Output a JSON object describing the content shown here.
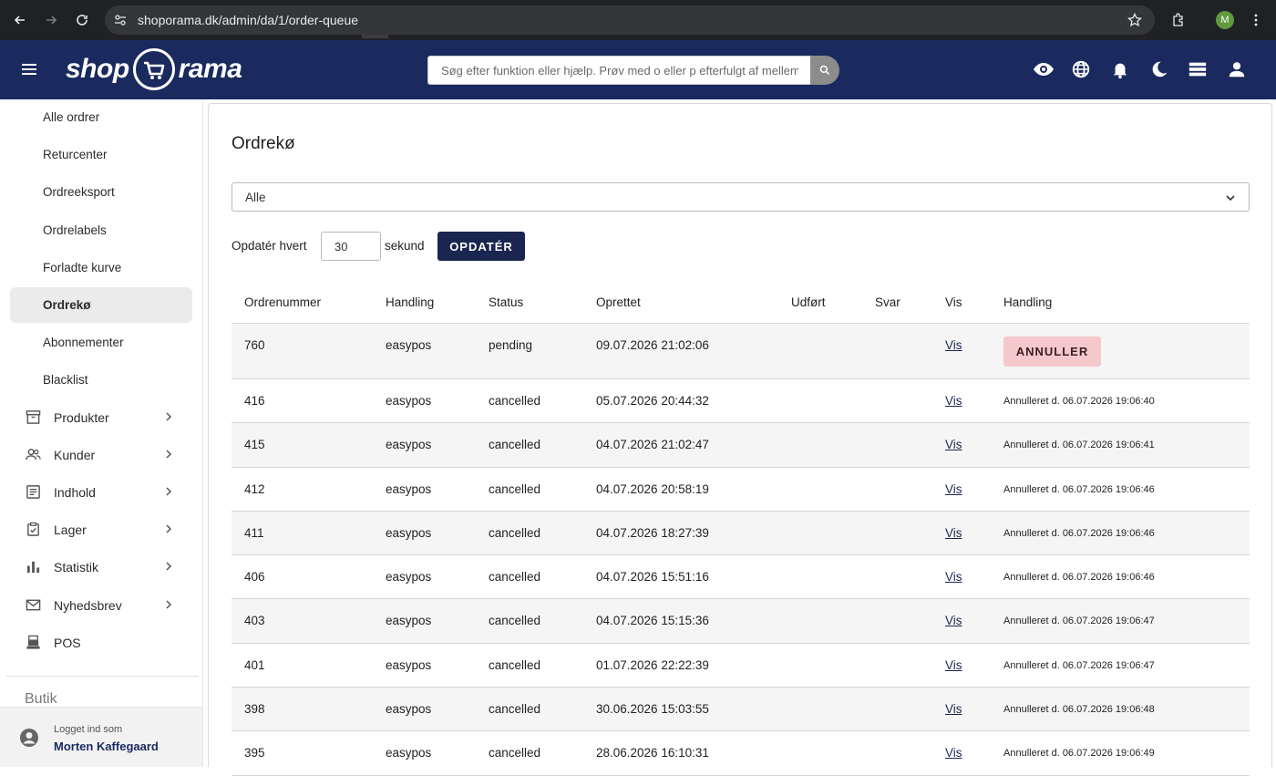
{
  "browser": {
    "url": "shoporama.dk/admin/da/1/order-queue",
    "profile_initial": "M"
  },
  "header": {
    "logo_left": "shop",
    "logo_right": "rama",
    "search_placeholder": "Søg efter funktion eller hjælp. Prøv med o eller p efterfulgt af mellemrum"
  },
  "sidebar": {
    "sub_items": [
      {
        "label": "Alle ordrer"
      },
      {
        "label": "Returcenter"
      },
      {
        "label": "Ordreeksport"
      },
      {
        "label": "Ordrelabels"
      },
      {
        "label": "Forladte kurve"
      },
      {
        "label": "Ordrekø"
      },
      {
        "label": "Abonnementer"
      },
      {
        "label": "Blacklist"
      }
    ],
    "main_items": [
      {
        "label": "Produkter",
        "icon": "archive-icon"
      },
      {
        "label": "Kunder",
        "icon": "people-icon"
      },
      {
        "label": "Indhold",
        "icon": "document-icon"
      },
      {
        "label": "Lager",
        "icon": "clipboard-icon"
      },
      {
        "label": "Statistik",
        "icon": "bar-chart-icon"
      },
      {
        "label": "Nyhedsbrev",
        "icon": "mail-icon"
      },
      {
        "label": "POS",
        "icon": "register-icon"
      }
    ],
    "section_label": "Butik",
    "footer": {
      "logged_label": "Logget ind som",
      "user_name": "Morten Kaffegaard"
    }
  },
  "main": {
    "title": "Ordrekø",
    "filter_value": "Alle",
    "refresh_label": "Opdatér hvert",
    "refresh_value": "30",
    "refresh_unit": "sekund",
    "update_button": "OPDATÉR",
    "columns": [
      "Ordrenummer",
      "Handling",
      "Status",
      "Oprettet",
      "Udført",
      "Svar",
      "Vis",
      "Handling"
    ],
    "rows": [
      {
        "order": "760",
        "action": "easypos",
        "status": "pending",
        "created": "09.07.2026 21:02:06",
        "done": "",
        "reply": "",
        "view": "Vis",
        "handling": "ANNULLER"
      },
      {
        "order": "416",
        "action": "easypos",
        "status": "cancelled",
        "created": "05.07.2026 20:44:32",
        "done": "",
        "reply": "",
        "view": "Vis",
        "handling": "Annulleret d. 06.07.2026 19:06:40"
      },
      {
        "order": "415",
        "action": "easypos",
        "status": "cancelled",
        "created": "04.07.2026 21:02:47",
        "done": "",
        "reply": "",
        "view": "Vis",
        "handling": "Annulleret d. 06.07.2026 19:06:41"
      },
      {
        "order": "412",
        "action": "easypos",
        "status": "cancelled",
        "created": "04.07.2026 20:58:19",
        "done": "",
        "reply": "",
        "view": "Vis",
        "handling": "Annulleret d. 06.07.2026 19:06:46"
      },
      {
        "order": "411",
        "action": "easypos",
        "status": "cancelled",
        "created": "04.07.2026 18:27:39",
        "done": "",
        "reply": "",
        "view": "Vis",
        "handling": "Annulleret d. 06.07.2026 19:06:46"
      },
      {
        "order": "406",
        "action": "easypos",
        "status": "cancelled",
        "created": "04.07.2026 15:51:16",
        "done": "",
        "reply": "",
        "view": "Vis",
        "handling": "Annulleret d. 06.07.2026 19:06:46"
      },
      {
        "order": "403",
        "action": "easypos",
        "status": "cancelled",
        "created": "04.07.2026 15:15:36",
        "done": "",
        "reply": "",
        "view": "Vis",
        "handling": "Annulleret d. 06.07.2026 19:06:47"
      },
      {
        "order": "401",
        "action": "easypos",
        "status": "cancelled",
        "created": "01.07.2026 22:22:39",
        "done": "",
        "reply": "",
        "view": "Vis",
        "handling": "Annulleret d. 06.07.2026 19:06:47"
      },
      {
        "order": "398",
        "action": "easypos",
        "status": "cancelled",
        "created": "30.06.2026 15:03:55",
        "done": "",
        "reply": "",
        "view": "Vis",
        "handling": "Annulleret d. 06.07.2026 19:06:48"
      },
      {
        "order": "395",
        "action": "easypos",
        "status": "cancelled",
        "created": "28.06.2026 16:10:31",
        "done": "",
        "reply": "",
        "view": "Vis",
        "handling": "Annulleret d. 06.07.2026 19:06:49"
      }
    ]
  },
  "colors": {
    "header_bg": "#1a2a5e",
    "button_dark": "#1a2650",
    "cancel_bg": "#f5c8cc"
  }
}
